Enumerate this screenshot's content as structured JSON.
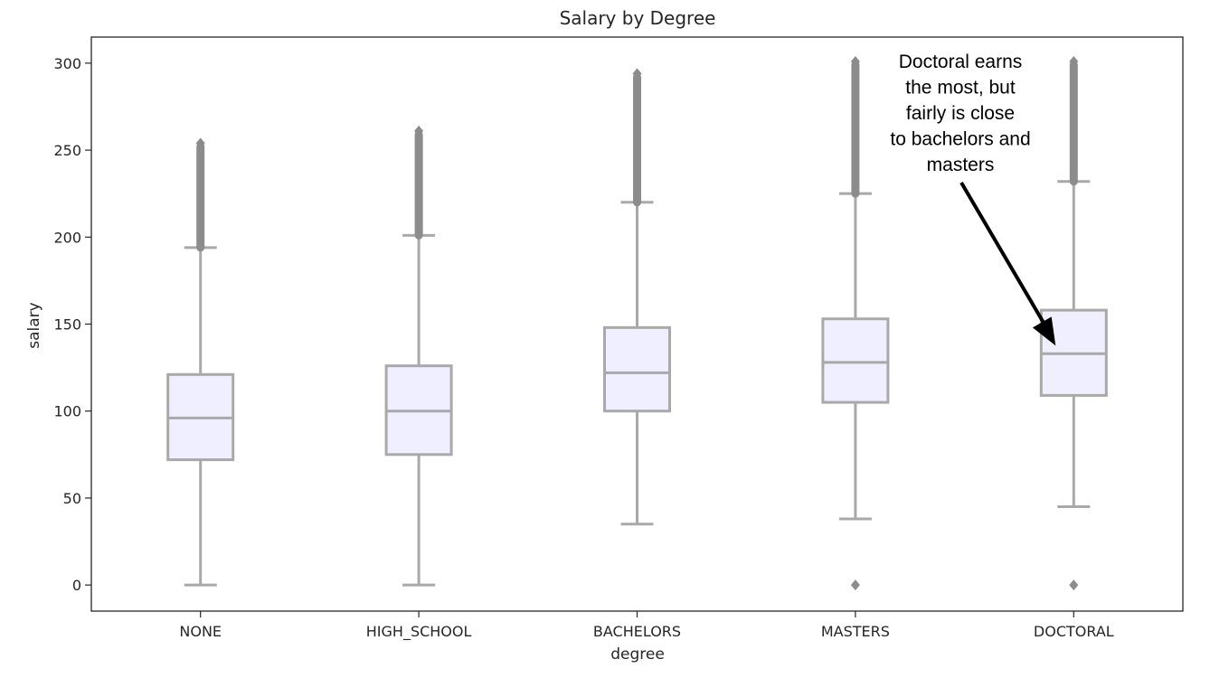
{
  "chart_data": {
    "type": "box",
    "title": "Salary by Degree",
    "xlabel": "degree",
    "ylabel": "salary",
    "ylim": [
      -15,
      315
    ],
    "yticks": [
      0,
      50,
      100,
      150,
      200,
      250,
      300
    ],
    "grid": false,
    "colors": {
      "box_fill": "#efefff",
      "box_edge": "#a9a9a9",
      "outlier": "#8c8c8c",
      "text": "#262626",
      "arrow": "#000000"
    },
    "categories": [
      "NONE",
      "HIGH_SCHOOL",
      "BACHELORS",
      "MASTERS",
      "DOCTORAL"
    ],
    "boxes": [
      {
        "category": "NONE",
        "whisker_low": 0,
        "q1": 72,
        "median": 96,
        "q3": 121,
        "whisker_high": 194,
        "outliers_range": [
          194,
          254
        ],
        "outliers_low": []
      },
      {
        "category": "HIGH_SCHOOL",
        "whisker_low": 0,
        "q1": 75,
        "median": 100,
        "q3": 126,
        "whisker_high": 201,
        "outliers_range": [
          201,
          261
        ],
        "outliers_low": []
      },
      {
        "category": "BACHELORS",
        "whisker_low": 35,
        "q1": 100,
        "median": 122,
        "q3": 148,
        "whisker_high": 220,
        "outliers_range": [
          220,
          294
        ],
        "outliers_low": []
      },
      {
        "category": "MASTERS",
        "whisker_low": 38,
        "q1": 105,
        "median": 128,
        "q3": 153,
        "whisker_high": 225,
        "outliers_range": [
          225,
          301
        ],
        "outliers_low": [
          0
        ]
      },
      {
        "category": "DOCTORAL",
        "whisker_low": 45,
        "q1": 109,
        "median": 133,
        "q3": 158,
        "whisker_high": 232,
        "outliers_range": [
          232,
          301
        ],
        "outliers_low": [
          0
        ]
      }
    ],
    "annotation": {
      "lines": [
        "Doctoral earns",
        "the most, but",
        "fairly  is close",
        "to bachelors and",
        "masters"
      ],
      "target_category": "DOCTORAL",
      "target_value": 135
    }
  }
}
